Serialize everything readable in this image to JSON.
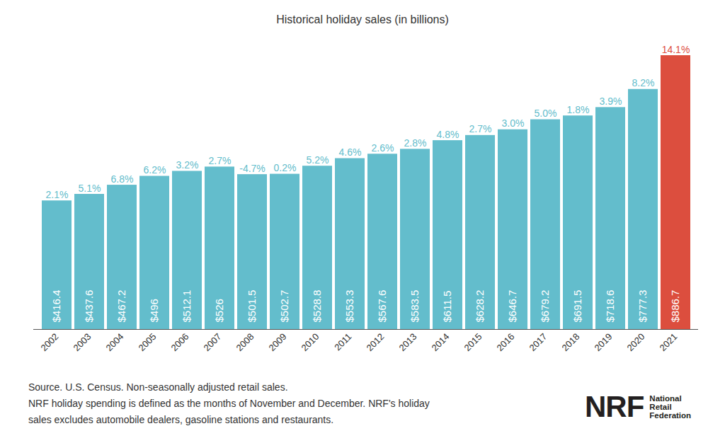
{
  "chart_data": {
    "type": "bar",
    "title": "Historical holiday sales (in billions)",
    "categories": [
      "2002",
      "2003",
      "2004",
      "2005",
      "2006",
      "2007",
      "2008",
      "2009",
      "2010",
      "2011",
      "2012",
      "2013",
      "2014",
      "2015",
      "2016",
      "2017",
      "2018",
      "2019",
      "2020",
      "2021"
    ],
    "values": [
      416.4,
      437.6,
      467.2,
      496,
      512.1,
      526,
      501.5,
      502.7,
      528.8,
      553.3,
      567.6,
      583.5,
      611.5,
      628.2,
      646.7,
      679.2,
      691.5,
      718.6,
      777.3,
      886.7
    ],
    "value_labels": [
      "$416.4",
      "$437.6",
      "$467.2",
      "$496",
      "$512.1",
      "$526",
      "$501.5",
      "$502.7",
      "$528.8",
      "$553.3",
      "$567.6",
      "$583.5",
      "$611.5",
      "$628.2",
      "$646.7",
      "$679.2",
      "$691.5",
      "$718.6",
      "$777.3",
      "$886.7"
    ],
    "growth": [
      2.1,
      5.1,
      6.8,
      6.2,
      3.2,
      2.7,
      -4.7,
      0.2,
      5.2,
      4.6,
      2.6,
      2.8,
      4.8,
      2.7,
      3.0,
      5.0,
      1.8,
      3.9,
      8.2,
      14.1
    ],
    "growth_labels": [
      "2.1%",
      "5.1%",
      "6.8%",
      "6.2%",
      "3.2%",
      "2.7%",
      "-4.7%",
      "0.2%",
      "5.2%",
      "4.6%",
      "2.6%",
      "2.8%",
      "4.8%",
      "2.7%",
      "3.0%",
      "5.0%",
      "1.8%",
      "3.9%",
      "8.2%",
      "14.1%"
    ],
    "colors": [
      "#63bdcc",
      "#63bdcc",
      "#63bdcc",
      "#63bdcc",
      "#63bdcc",
      "#63bdcc",
      "#63bdcc",
      "#63bdcc",
      "#63bdcc",
      "#63bdcc",
      "#63bdcc",
      "#63bdcc",
      "#63bdcc",
      "#63bdcc",
      "#63bdcc",
      "#63bdcc",
      "#63bdcc",
      "#63bdcc",
      "#63bdcc",
      "#dc4e3e"
    ],
    "ylim": [
      0,
      886.7
    ],
    "data_labels": true,
    "tick_labels": "x",
    "notes": [
      "Source. U.S. Census. Non-seasonally adjusted retail sales.",
      "NRF holiday spending is defined as the months of November and December. NRF's holiday",
      "sales excludes automobile dealers, gasoline stations and restaurants."
    ],
    "logo": {
      "mark": "NRF",
      "name": [
        "National",
        "Retail",
        "Federation"
      ]
    }
  }
}
